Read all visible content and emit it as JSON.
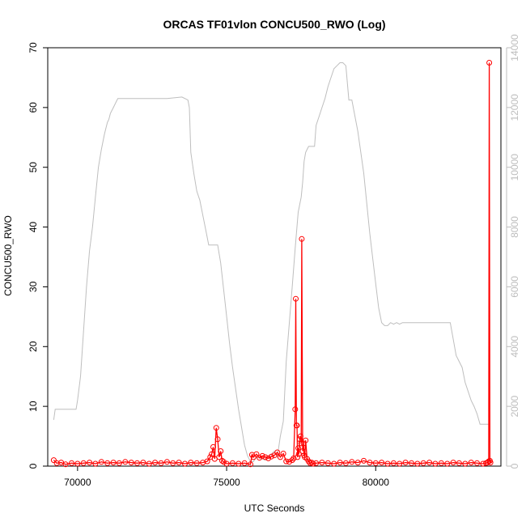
{
  "chart_data": {
    "type": "line",
    "title": "ORCAS TF01vlon CONCU500_RWO (Log)",
    "xlabel": "UTC Seconds",
    "ylabel": "CONCU500_RWO",
    "xlim": [
      69000,
      84200
    ],
    "ylim": [
      0,
      70
    ],
    "y2lim": [
      0,
      14000
    ],
    "x_ticks": [
      70000,
      75000,
      80000
    ],
    "y_ticks": [
      0,
      10,
      20,
      30,
      40,
      50,
      60,
      70
    ],
    "y2_ticks": [
      0,
      2000,
      4000,
      6000,
      8000,
      10000,
      12000,
      14000
    ],
    "grid": false,
    "colors": {
      "primary": "#ff0000",
      "secondary": "#bebebe"
    },
    "series": [
      {
        "axis": "y2",
        "color": "#bebebe",
        "x": [
          69200,
          69250,
          69400,
          69950,
          70000,
          70100,
          70200,
          70300,
          70400,
          70500,
          70600,
          70700,
          70800,
          70900,
          70950,
          71000,
          71050,
          71100,
          71200,
          71300,
          71350,
          73000,
          73500,
          73700,
          73750,
          73800,
          73900,
          74000,
          74100,
          74200,
          74300,
          74400,
          74500,
          74550,
          74650,
          74700,
          74800,
          74900,
          75000,
          75100,
          75200,
          75300,
          75400,
          75500,
          75600,
          75700,
          75800,
          75900,
          76000,
          76300,
          76600,
          76700,
          76800,
          76900,
          77000,
          77200,
          77300,
          77400,
          77500,
          77550,
          77600,
          77650,
          77700,
          77750,
          77800,
          77850,
          77900,
          77950,
          78000,
          78100,
          78200,
          78300,
          78400,
          78500,
          78600,
          78700,
          78800,
          78900,
          79000,
          79100,
          79200,
          79400,
          79600,
          79800,
          80000,
          80100,
          80200,
          80300,
          80400,
          80500,
          80600,
          80700,
          80800,
          80900,
          81500,
          82000,
          82500,
          82700,
          82900,
          83000,
          83100,
          83200,
          83300,
          83400,
          83500,
          83600,
          83700,
          83800
        ],
        "values": [
          1550,
          1900,
          1900,
          1900,
          2200,
          3000,
          4500,
          6000,
          7200,
          8000,
          9000,
          10000,
          10600,
          11100,
          11300,
          11500,
          11600,
          11800,
          12000,
          12200,
          12300,
          12300,
          12350,
          12250,
          12000,
          10500,
          9800,
          9200,
          8900,
          8400,
          7900,
          7400,
          7400,
          7400,
          7400,
          7400,
          6800,
          5900,
          5000,
          4100,
          3300,
          2600,
          1900,
          1300,
          700,
          350,
          150,
          150,
          300,
          200,
          500,
          300,
          1000,
          1500,
          3500,
          6000,
          7300,
          8500,
          9000,
          9500,
          10200,
          10500,
          10600,
          10700,
          10700,
          10700,
          10700,
          10700,
          11400,
          11700,
          12000,
          12300,
          12700,
          13000,
          13300,
          13400,
          13500,
          13500,
          13400,
          12250,
          12250,
          11200,
          9800,
          7800,
          6100,
          5300,
          4800,
          4700,
          4700,
          4800,
          4750,
          4800,
          4750,
          4800,
          4800,
          4800,
          4800,
          3700,
          3300,
          2800,
          2500,
          2200,
          2000,
          1750,
          1400,
          1400,
          1400,
          1400
        ]
      },
      {
        "axis": "y",
        "color": "#ff0000",
        "x": [
          69200,
          69300,
          69450,
          69600,
          69800,
          70000,
          70200,
          70400,
          70600,
          70800,
          71000,
          71200,
          71400,
          71600,
          71800,
          72000,
          72200,
          72400,
          72600,
          72800,
          73000,
          73200,
          73400,
          73600,
          73800,
          74000,
          74200,
          74350,
          74450,
          74500,
          74550,
          74600,
          74650,
          74700,
          74750,
          74800,
          74850,
          74900,
          75000,
          75200,
          75400,
          75600,
          75800,
          75850,
          75900,
          76000,
          76100,
          76200,
          76300,
          76400,
          76500,
          76600,
          76700,
          76800,
          76900,
          77000,
          77100,
          77200,
          77250,
          77300,
          77320,
          77340,
          77360,
          77380,
          77400,
          77420,
          77450,
          77480,
          77500,
          77520,
          77550,
          77580,
          77600,
          77620,
          77650,
          77700,
          77750,
          77800,
          77850,
          77900,
          78000,
          78200,
          78400,
          78600,
          78800,
          79000,
          79200,
          79400,
          79600,
          79800,
          80000,
          80200,
          80400,
          80600,
          80800,
          81000,
          81200,
          81400,
          81600,
          81800,
          82000,
          82200,
          82400,
          82600,
          82800,
          83000,
          83200,
          83400,
          83600,
          83700,
          83750,
          83790,
          83810,
          83830,
          83850
        ],
        "values": [
          1.0,
          0.5,
          0.6,
          0.3,
          0.5,
          0.4,
          0.5,
          0.6,
          0.4,
          0.7,
          0.5,
          0.6,
          0.5,
          0.7,
          0.6,
          0.5,
          0.6,
          0.4,
          0.6,
          0.5,
          0.7,
          0.5,
          0.6,
          0.4,
          0.6,
          0.5,
          0.6,
          0.8,
          1.5,
          2.0,
          3.2,
          1.2,
          6.4,
          4.5,
          1.5,
          2.5,
          0.9,
          0.7,
          0.4,
          0.5,
          0.4,
          0.5,
          0.3,
          1.9,
          1.5,
          2.0,
          1.4,
          1.7,
          1.5,
          1.3,
          1.6,
          1.8,
          2.3,
          1.5,
          2.1,
          0.8,
          0.7,
          1.0,
          1.3,
          9.5,
          28.0,
          6.8,
          6.8,
          1.5,
          3.0,
          2.0,
          4.5,
          5.0,
          3.8,
          38.0,
          2.5,
          3.8,
          1.8,
          1.5,
          4.3,
          1.2,
          0.8,
          0.5,
          0.6,
          0.4,
          0.5,
          0.6,
          0.5,
          0.4,
          0.6,
          0.5,
          0.7,
          0.6,
          0.9,
          0.6,
          0.5,
          0.6,
          0.4,
          0.5,
          0.4,
          0.6,
          0.5,
          0.4,
          0.5,
          0.6,
          0.4,
          0.5,
          0.4,
          0.6,
          0.5,
          0.4,
          0.6,
          0.5,
          0.4,
          0.5,
          0.6,
          0.8,
          67.5,
          0.9,
          0.6
        ]
      }
    ]
  }
}
